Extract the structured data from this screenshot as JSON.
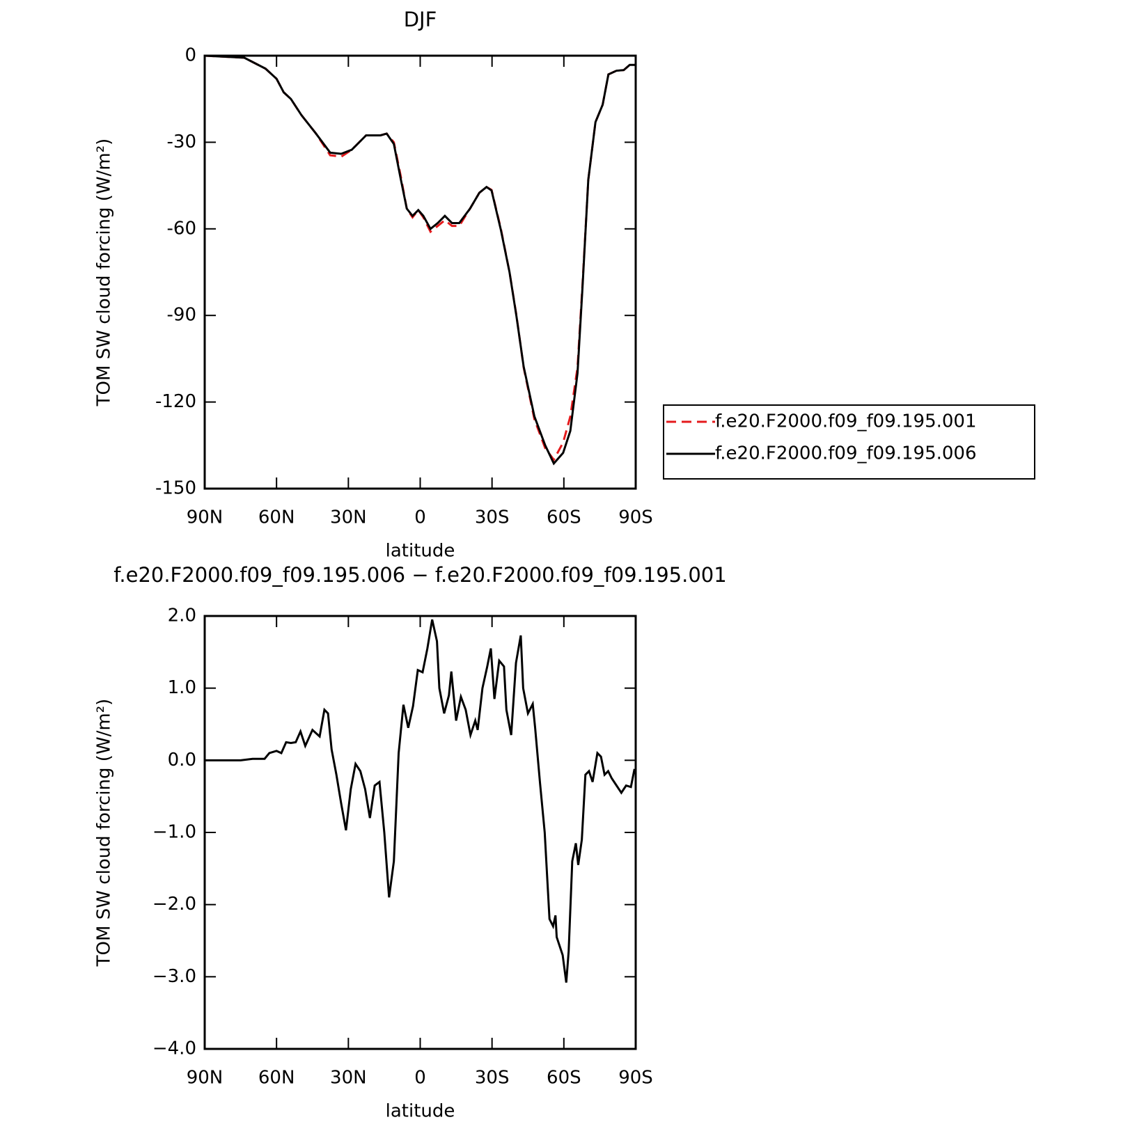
{
  "chart_data": [
    {
      "type": "line",
      "title": "DJF",
      "x_label": "latitude",
      "y_label": "TOM SW cloud forcing (W/m²)",
      "x": [
        90,
        73.5,
        64.6,
        60,
        57,
        54,
        49.6,
        43.6,
        37.6,
        33,
        28.6,
        22.6,
        16.6,
        14,
        11,
        8.3,
        5.6,
        3.2,
        0.8,
        -1.3,
        -4.3,
        -7.3,
        -10.3,
        -13.3,
        -16.3,
        -20.8,
        -24.7,
        -27.7,
        -29.8,
        -33.7,
        -37.3,
        -40.2,
        -43.2,
        -47.7,
        -52.2,
        -55.8,
        -59.7,
        -62.7,
        -65.7,
        -67.8,
        -70.2,
        -73.2,
        -76.2,
        -78.6,
        -82,
        -85,
        -87.5,
        -90
      ],
      "series": [
        {
          "name": "f.e20.F2000.f09_f09.195.001",
          "color": "#e41a1c",
          "dash": "dashed",
          "values": [
            0,
            -0.7,
            -4.5,
            -8,
            -12.7,
            -15,
            -20.6,
            -26.9,
            -34.5,
            -35,
            -32.6,
            -27.6,
            -27.6,
            -27,
            -30,
            -41,
            -53,
            -56,
            -53.5,
            -56,
            -61,
            -59,
            -57,
            -59,
            -59,
            -53,
            -47.5,
            -45.5,
            -46.5,
            -60,
            -75,
            -90,
            -108,
            -126,
            -136,
            -140,
            -134,
            -125,
            -108,
            -79,
            -43,
            -23,
            -17,
            -6.5,
            -5.2,
            -5,
            -3.2,
            -3.2
          ]
        },
        {
          "name": "f.e20.F2000.f09_f09.195.006",
          "color": "#000000",
          "dash": "solid",
          "values": [
            0,
            -0.7,
            -4.5,
            -8,
            -12.7,
            -15,
            -20.6,
            -26.9,
            -33.6,
            -34,
            -32.6,
            -27.6,
            -27.6,
            -27,
            -30.6,
            -42,
            -53,
            -55.5,
            -53.5,
            -55.5,
            -60,
            -58,
            -55.5,
            -58,
            -58,
            -53,
            -47.5,
            -45.5,
            -46.7,
            -60.4,
            -75,
            -90.3,
            -107.7,
            -125,
            -135,
            -141.3,
            -137.6,
            -130,
            -110,
            -80,
            -43,
            -23,
            -17,
            -6.5,
            -5.2,
            -5,
            -3.2,
            -3.2
          ]
        }
      ],
      "xlim": [
        90,
        -90
      ],
      "xticks": [
        {
          "value": 90,
          "label": "90N"
        },
        {
          "value": 60,
          "label": "60N"
        },
        {
          "value": 30,
          "label": "30N"
        },
        0,
        {
          "value": -30,
          "label": "30S"
        },
        {
          "value": -60,
          "label": "60S"
        },
        {
          "value": -90,
          "label": "90S"
        }
      ],
      "ylim": [
        -150,
        0
      ],
      "yticks": [
        0,
        -30,
        -60,
        -90,
        -120,
        -150
      ],
      "legend": "right"
    },
    {
      "type": "line",
      "title": "f.e20.F2000.f09_f09.195.006 − f.e20.F2000.f09_f09.195.001",
      "x_label": "latitude",
      "y_label": "TOM SW cloud forcing (W/m²)",
      "x": [
        90,
        75,
        70,
        65,
        63,
        60,
        58,
        56,
        54,
        52,
        50,
        48,
        45,
        42,
        40,
        38.5,
        37,
        35,
        33,
        31,
        29,
        27,
        25,
        23,
        21,
        19,
        17,
        15,
        13,
        11,
        9,
        7,
        5,
        3,
        1,
        -1,
        -3,
        -5,
        -7,
        -8,
        -10,
        -12,
        -13,
        -15,
        -17,
        -19,
        -21,
        -23,
        -24,
        -26,
        -28,
        -29.5,
        -31,
        -33,
        -35,
        -36,
        -38,
        -40,
        -42,
        -43,
        -45,
        -47,
        -48,
        -50,
        -52,
        -54,
        -55.5,
        -56.5,
        -57,
        -58.5,
        -59.5,
        -61,
        -62,
        -63.5,
        -65,
        -66,
        -67.5,
        -69,
        -70.5,
        -72,
        -74,
        -75.5,
        -77,
        -78.5,
        -80,
        -82,
        -84,
        -86,
        -88,
        -89.5
      ],
      "series": [
        {
          "color": "#000000",
          "dash": "solid",
          "values": [
            0,
            0,
            0.02,
            0.02,
            0.1,
            0.13,
            0.1,
            0.25,
            0.24,
            0.25,
            0.4,
            0.2,
            0.42,
            0.33,
            0.7,
            0.65,
            0.15,
            -0.2,
            -0.6,
            -0.97,
            -0.4,
            -0.05,
            -0.15,
            -0.4,
            -0.8,
            -0.35,
            -0.3,
            -1.0,
            -1.9,
            -1.4,
            0.1,
            0.77,
            0.45,
            0.75,
            1.25,
            1.22,
            1.55,
            1.95,
            1.65,
            1.0,
            0.65,
            0.9,
            1.23,
            0.55,
            0.88,
            0.7,
            0.35,
            0.55,
            0.42,
            1.0,
            1.3,
            1.55,
            0.85,
            1.38,
            1.3,
            0.7,
            0.35,
            1.35,
            1.73,
            1.0,
            0.65,
            0.78,
            0.45,
            -0.3,
            -1.0,
            -2.2,
            -2.3,
            -2.15,
            -2.45,
            -2.6,
            -2.7,
            -3.08,
            -2.65,
            -1.4,
            -1.15,
            -1.45,
            -1.1,
            -0.2,
            -0.15,
            -0.3,
            0.1,
            0.05,
            -0.2,
            -0.15,
            -0.25,
            -0.35,
            -0.45,
            -0.35,
            -0.37,
            -0.12
          ]
        }
      ],
      "xlim": [
        90,
        -90
      ],
      "xticks": [
        {
          "value": 90,
          "label": "90N"
        },
        {
          "value": 60,
          "label": "60N"
        },
        {
          "value": 30,
          "label": "30N"
        },
        0,
        {
          "value": -30,
          "label": "30S"
        },
        {
          "value": -60,
          "label": "60S"
        },
        {
          "value": -90,
          "label": "90S"
        }
      ],
      "ylim": [
        -4,
        2
      ],
      "yticks": [
        {
          "value": 2,
          "label": "2.0"
        },
        {
          "value": 1,
          "label": "1.0"
        },
        {
          "value": 0,
          "label": "0.0"
        },
        {
          "value": -1,
          "label": "−1.0"
        },
        {
          "value": -2,
          "label": "−2.0"
        },
        {
          "value": -3,
          "label": "−3.0"
        },
        {
          "value": -4,
          "label": "−4.0"
        }
      ]
    }
  ]
}
